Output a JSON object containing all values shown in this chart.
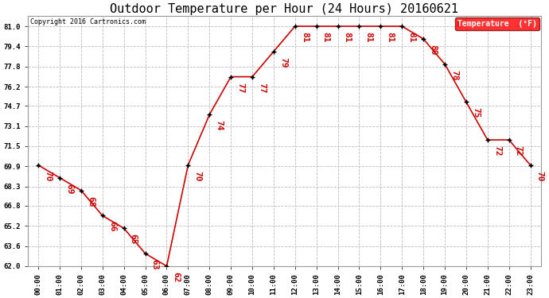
{
  "title": "Outdoor Temperature per Hour (24 Hours) 20160621",
  "copyright": "Copyright 2016 Cartronics.com",
  "legend_label": "Temperature  (°F)",
  "hours": [
    0,
    1,
    2,
    3,
    4,
    5,
    6,
    7,
    8,
    9,
    10,
    11,
    12,
    13,
    14,
    15,
    16,
    17,
    18,
    19,
    20,
    21,
    22,
    23
  ],
  "temps": [
    70,
    69,
    68,
    66,
    65,
    63,
    62,
    70,
    74,
    77,
    77,
    79,
    81,
    81,
    81,
    81,
    81,
    81,
    80,
    78,
    75,
    72,
    72,
    70
  ],
  "ylim_min": 62.0,
  "ylim_max": 81.8,
  "yticks": [
    62.0,
    63.6,
    65.2,
    66.8,
    68.3,
    69.9,
    71.5,
    73.1,
    74.7,
    76.2,
    77.8,
    79.4,
    81.0
  ],
  "line_color": "#cc0000",
  "bg_color": "#ffffff",
  "grid_color": "#bbbbbb",
  "title_fontsize": 11,
  "label_fontsize": 6.5,
  "annot_fontsize": 8,
  "copyright_fontsize": 6
}
